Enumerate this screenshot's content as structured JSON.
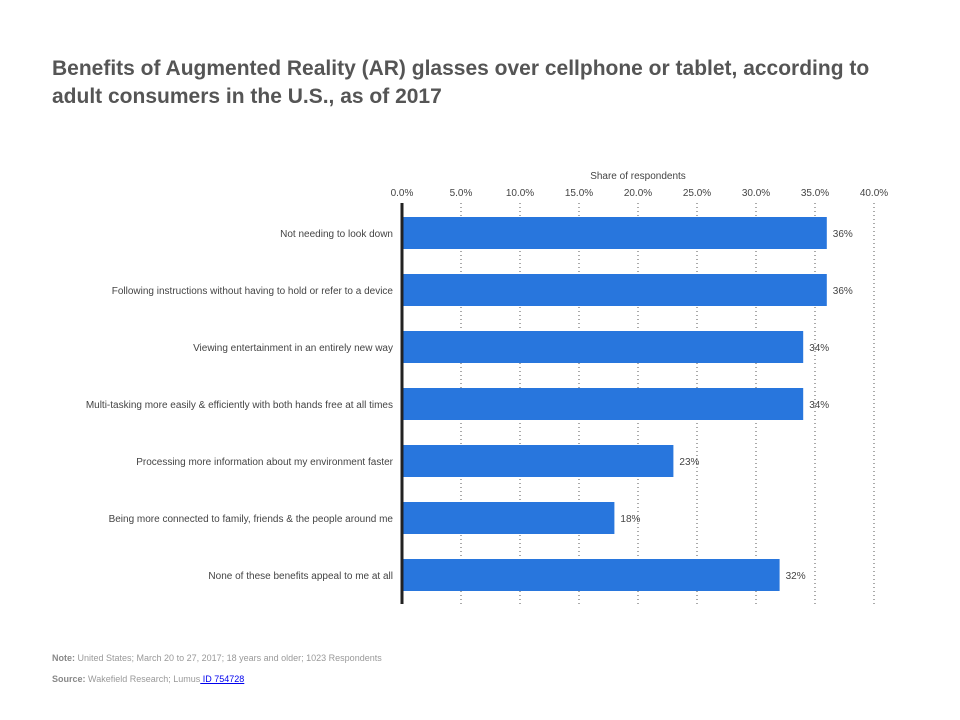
{
  "chart_data": {
    "type": "bar",
    "orientation": "horizontal",
    "title": "Benefits of Augmented Reality (AR) glasses over cellphone or tablet, according to adult consumers in the U.S., as of 2017",
    "xlabel": "Share of respondents",
    "xlim": [
      0,
      40
    ],
    "ticks": [
      "0.0%",
      "5.0%",
      "10.0%",
      "15.0%",
      "20.0%",
      "25.0%",
      "30.0%",
      "35.0%",
      "40.0%"
    ],
    "tick_values": [
      0,
      5,
      10,
      15,
      20,
      25,
      30,
      35,
      40
    ],
    "grid": "vertical dotted",
    "categories": [
      "Not needing to look down",
      "Following instructions without having to hold or refer to a device",
      "Viewing entertainment in an entirely new way",
      "Multi-tasking more easily & efficiently with both hands free at all times",
      "Processing more information about my environment faster",
      "Being more connected to family, friends & the people around me",
      "None of these benefits appeal to me at all"
    ],
    "values": [
      36,
      36,
      34,
      34,
      23,
      18,
      32
    ],
    "value_labels": [
      "36%",
      "36%",
      "34%",
      "34%",
      "23%",
      "18%",
      "32%"
    ],
    "bar_color": "#2876dd"
  },
  "footer": {
    "note_label": "Note:",
    "note": "United States; March 20 to 27, 2017; 18 years and older; 1023  Respondents",
    "source_label": "Source:",
    "source": "Wakefield Research; Lumus",
    "source_link": " ID 754728"
  }
}
